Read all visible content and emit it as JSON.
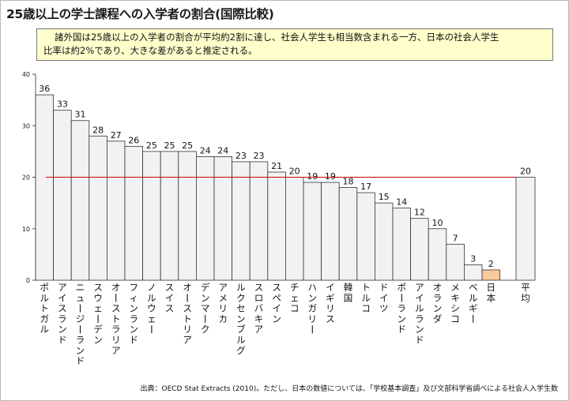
{
  "title": "25歳以上の学士課程への入学者の割合(国際比較)",
  "summary": {
    "line1": "諸外国は25歳以上の入学者の割合が平均約2割に達し、社会人学生も相当数含まれる一方、日本の社会人学生",
    "line2": "比率は約2%であり、大きな差があると推定される。"
  },
  "source": "出典：OECD Stat Extracts (2010)。ただし、日本の数値については、「学校基本調査」及び文部科学省調べによる社会人入学生数",
  "colors": {
    "bar_fill": "#f2f2f2",
    "bar_stroke": "#333333",
    "japan_fill": "#f9c89b",
    "average_line": "#cc0000",
    "summary_bg": "#ffffcc"
  },
  "chart_data": {
    "type": "bar",
    "categories": [
      "ポルトガル",
      "アイスランド",
      "ニュージーランド",
      "スウェーデン",
      "オーストラリア",
      "フィンランド",
      "ノルウェー",
      "スイス",
      "オーストリア",
      "デンマーク",
      "アメリカ",
      "ルクセンブルグ",
      "スロバキア",
      "スペイン",
      "チェコ",
      "ハンガリー",
      "イギリス",
      "韓国",
      "トルコ",
      "ドイツ",
      "ポーランド",
      "アイルランド",
      "オランダ",
      "メキシコ",
      "ベルギー",
      "日本"
    ],
    "values": [
      36,
      33,
      31,
      28,
      27,
      26,
      25,
      25,
      25,
      24,
      24,
      23,
      23,
      21,
      20,
      19,
      19,
      18,
      17,
      15,
      14,
      12,
      10,
      7,
      3,
      2
    ],
    "average": {
      "label": "平均",
      "value": 20
    },
    "highlight": "日本",
    "ylim": [
      0,
      40
    ],
    "yticks": [
      0,
      10,
      20,
      30,
      40
    ],
    "xlabel": "",
    "ylabel": "",
    "grid": false,
    "legend": "none"
  }
}
